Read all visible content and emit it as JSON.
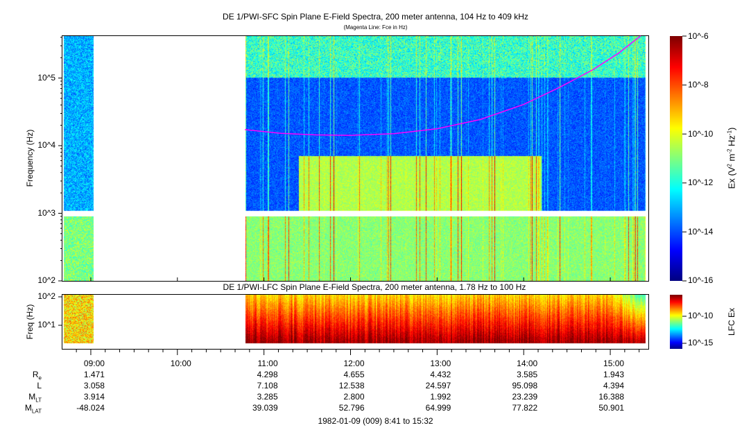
{
  "chart_data": [
    {
      "type": "heatmap",
      "title": "DE 1/PWI-SFC  Spin Plane E-Field Spectra, 200 meter antenna, 104 Hz to 409 kHz",
      "subtitle": "(Magenta Line: Fce in Hz)",
      "ylabel": "Frequency (Hz)",
      "ylim": [
        100,
        409000
      ],
      "yscale": "log",
      "ytick_labels": [
        "10^2",
        "10^3",
        "10^4",
        "10^5"
      ],
      "colorbar": {
        "label": "Ex (V^2 m^-2 Hz^-1)",
        "range": [
          1e-16,
          1e-06
        ],
        "tick_labels": [
          "10^-6",
          "10^-8",
          "10^-10",
          "10^-12",
          "10^-14",
          "10^-16"
        ],
        "colormap": "jet"
      },
      "data_intervals_hours": [
        [
          8.683,
          9.03
        ],
        [
          10.78,
          15.4
        ]
      ],
      "fce_line": {
        "name": "Fce",
        "color": "#ff00ff",
        "x_hours": [
          10.78,
          11.2,
          11.6,
          12.0,
          12.5,
          13.0,
          13.5,
          14.0,
          14.4,
          14.8,
          15.1,
          15.35
        ],
        "y_hz": [
          17000,
          15000,
          14200,
          14000,
          14800,
          17500,
          24000,
          40000,
          70000,
          130000,
          230000,
          409000
        ]
      }
    },
    {
      "type": "heatmap",
      "title": "DE 1/PWI-LFC  Spin Plane E-Field Spectra, 200 meter antenna, 1.78 Hz to 100 Hz",
      "ylabel": "Freq (Hz)",
      "ylim": [
        1.78,
        100
      ],
      "yscale": "log",
      "ytick_labels": [
        "10^1",
        "10^2"
      ],
      "colorbar": {
        "label": "LFC Ex",
        "range": [
          1e-16,
          1e-07
        ],
        "tick_labels": [
          "10^-10",
          "10^-15"
        ],
        "colormap": "jet"
      },
      "data_intervals_hours": [
        [
          8.683,
          9.03
        ],
        [
          10.78,
          15.4
        ]
      ]
    }
  ],
  "xaxis": {
    "xlim_hours": [
      8.672,
      15.44
    ],
    "tick_hours": [
      9,
      10,
      11,
      12,
      13,
      14,
      15
    ],
    "tick_labels": [
      "09:00",
      "10:00",
      "11:00",
      "12:00",
      "13:00",
      "14:00",
      "15:00"
    ]
  },
  "ephemeris": {
    "labels": {
      "re": "R",
      "re_sub": "e",
      "l": "L",
      "mlt": "M",
      "mlt_sub": "LT",
      "mlat": "M",
      "mlat_sub": "LAT"
    },
    "columns": [
      {
        "time": "09:00",
        "re": "1.471",
        "l": "3.058",
        "mlt": "3.914",
        "mlat": "-48.024"
      },
      {
        "time": "10:00",
        "re": "",
        "l": "",
        "mlt": "",
        "mlat": ""
      },
      {
        "time": "11:00",
        "re": "4.298",
        "l": "7.108",
        "mlt": "3.285",
        "mlat": "39.039"
      },
      {
        "time": "12:00",
        "re": "4.655",
        "l": "12.538",
        "mlt": "2.800",
        "mlat": "52.796"
      },
      {
        "time": "13:00",
        "re": "4.432",
        "l": "24.597",
        "mlt": "1.992",
        "mlat": "64.999"
      },
      {
        "time": "14:00",
        "re": "3.585",
        "l": "95.098",
        "mlt": "23.239",
        "mlat": "77.822"
      },
      {
        "time": "15:00",
        "re": "1.943",
        "l": "4.394",
        "mlt": "16.388",
        "mlat": "50.901"
      }
    ]
  },
  "footer": "1982-01-09 (009) 8:41 to 15:32"
}
